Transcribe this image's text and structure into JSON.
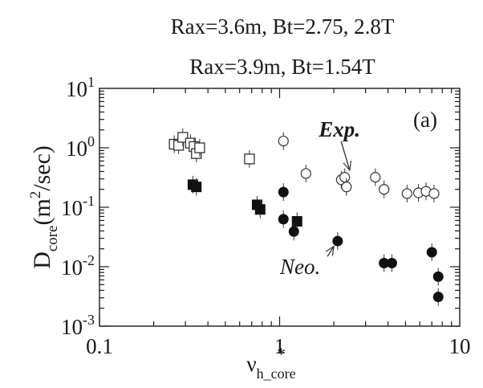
{
  "chart_data": {
    "type": "scatter",
    "header_lines": [
      "Rax=3.6m, Bt=2.75, 2.8T",
      "Rax=3.9m, Bt=1.54T"
    ],
    "panel_label": "(a)",
    "xlabel": {
      "main": "ν",
      "sup": "*",
      "sub": "h_core"
    },
    "ylabel": {
      "main": "D",
      "sub": "core",
      "rest_open": "(m",
      "sup": "2",
      "rest_close": "/sec)"
    },
    "x_scale": "log",
    "y_scale": "log",
    "xlim": [
      0.1,
      10
    ],
    "ylim": [
      0.001,
      10
    ],
    "x_ticks": [
      {
        "value": 0.1,
        "label": "0.1"
      },
      {
        "value": 1,
        "label": "1"
      },
      {
        "value": 10,
        "label": "10"
      }
    ],
    "y_ticks": [
      {
        "value": 0.001,
        "base": "10",
        "exp": "-3"
      },
      {
        "value": 0.01,
        "base": "10",
        "exp": "-2"
      },
      {
        "value": 0.1,
        "base": "10",
        "exp": "-1"
      },
      {
        "value": 1,
        "base": "10",
        "exp": "0"
      },
      {
        "value": 10,
        "base": "10",
        "exp": "1"
      }
    ],
    "grid": false,
    "annotations": [
      {
        "text": "Exp.",
        "x": 2.15,
        "y": 1.55,
        "style": "bold-italic",
        "arrow_to": [
          2.45,
          0.42
        ]
      },
      {
        "text": "Neo.",
        "x": 1.3,
        "y": 0.0075,
        "style": "italic",
        "arrow_to": [
          2.0,
          0.022
        ]
      }
    ],
    "series": [
      {
        "marker": "open-square",
        "x": [
          0.26,
          0.275,
          0.29,
          0.32,
          0.335,
          0.345,
          0.36,
          0.68
        ],
        "y": [
          1.15,
          1.1,
          1.5,
          1.2,
          1.05,
          0.8,
          1.0,
          0.65
        ]
      },
      {
        "marker": "filled-square",
        "x": [
          0.33,
          0.345,
          0.75,
          0.78,
          1.25
        ],
        "y": [
          0.24,
          0.22,
          0.11,
          0.092,
          0.058
        ]
      },
      {
        "marker": "open-circle",
        "x": [
          1.05,
          1.4,
          2.2,
          2.3,
          2.35,
          3.4,
          3.8,
          5.1,
          5.9,
          6.5,
          7.2
        ],
        "y": [
          1.3,
          0.37,
          0.29,
          0.32,
          0.22,
          0.32,
          0.2,
          0.17,
          0.175,
          0.185,
          0.17
        ]
      },
      {
        "marker": "filled-circle",
        "x": [
          1.05,
          1.05,
          1.2,
          2.1,
          3.8,
          4.2,
          7.0,
          7.6,
          7.6
        ],
        "y": [
          0.18,
          0.063,
          0.039,
          0.027,
          0.0115,
          0.0115,
          0.0175,
          0.0068,
          0.0031
        ]
      }
    ]
  }
}
